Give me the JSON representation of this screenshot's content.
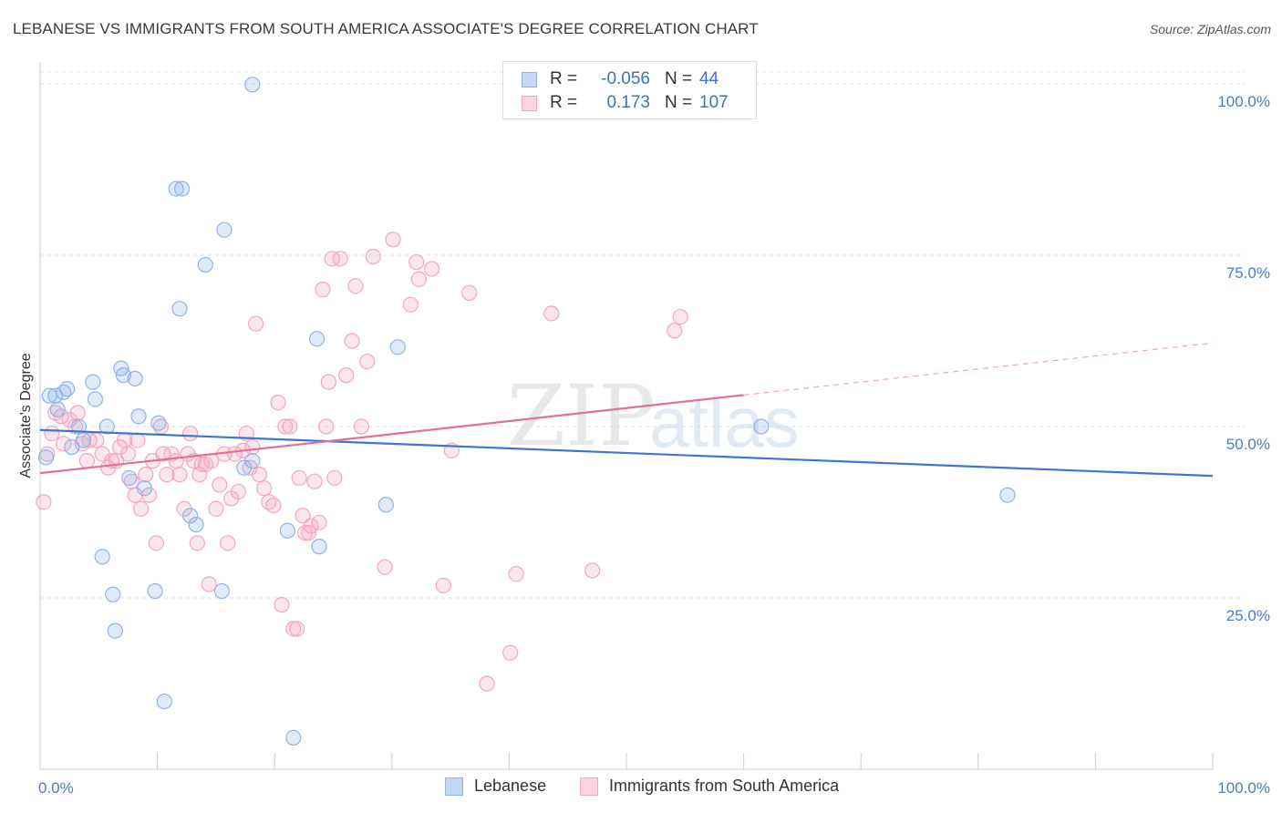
{
  "title": "LEBANESE VS IMMIGRANTS FROM SOUTH AMERICA ASSOCIATE'S DEGREE CORRELATION CHART",
  "source": "Source: ZipAtlas.com",
  "watermark": {
    "zip": "ZIP",
    "atlas": "atlas"
  },
  "legend": {
    "rows": [
      {
        "r_label": "R =",
        "r_value": "-0.056",
        "n_label": "N =",
        "n_value": "44",
        "color": "#8fb4e6"
      },
      {
        "r_label": "R =",
        "r_value": "0.173",
        "n_label": "N =",
        "n_value": "107",
        "color": "#f4a5c0"
      }
    ]
  },
  "chart_data": {
    "type": "scatter",
    "title": "LEBANESE VS IMMIGRANTS FROM SOUTH AMERICA ASSOCIATE'S DEGREE CORRELATION CHART",
    "xlabel": "",
    "ylabel": "Associate's Degree",
    "xlim": [
      0,
      100
    ],
    "ylim": [
      0,
      102
    ],
    "x_tick_labels": [
      "0.0%",
      "100.0%"
    ],
    "y_ticks": [
      25,
      50,
      75,
      100
    ],
    "y_tick_labels": [
      "25.0%",
      "50.0%",
      "75.0%",
      "100.0%"
    ],
    "grid": true,
    "legend_position": "bottom",
    "series": [
      {
        "name": "Lebanese",
        "color": "#8fb4e6",
        "line_color": "#3a78d0",
        "trend": {
          "x0": 0,
          "y0": 49.5,
          "x1": 100,
          "y1": 42.8
        },
        "points": [
          [
            0.5,
            45.5
          ],
          [
            0.8,
            54.5
          ],
          [
            1.3,
            54.5
          ],
          [
            1.5,
            52.5
          ],
          [
            2.0,
            55
          ],
          [
            2.3,
            55.5
          ],
          [
            2.7,
            47
          ],
          [
            3.3,
            50
          ],
          [
            3.7,
            48
          ],
          [
            4.5,
            56.5
          ],
          [
            4.7,
            54
          ],
          [
            5.3,
            31
          ],
          [
            5.7,
            50
          ],
          [
            6.2,
            25.5
          ],
          [
            6.4,
            20.2
          ],
          [
            6.9,
            58.5
          ],
          [
            7.1,
            57.5
          ],
          [
            7.6,
            42.5
          ],
          [
            8.1,
            57
          ],
          [
            8.4,
            51.5
          ],
          [
            8.9,
            41
          ],
          [
            9.8,
            26
          ],
          [
            10.1,
            50.5
          ],
          [
            10.6,
            9.9
          ],
          [
            11.6,
            84.7
          ],
          [
            12.1,
            84.7
          ],
          [
            11.9,
            67.2
          ],
          [
            12.8,
            37
          ],
          [
            13.3,
            35.7
          ],
          [
            14.1,
            73.6
          ],
          [
            15.5,
            26
          ],
          [
            15.7,
            78.7
          ],
          [
            17.4,
            44
          ],
          [
            18.1,
            45
          ],
          [
            18.1,
            99.9
          ],
          [
            21.1,
            34.8
          ],
          [
            21.6,
            4.6
          ],
          [
            23.6,
            62.8
          ],
          [
            23.8,
            32.5
          ],
          [
            29.5,
            38.6
          ],
          [
            30.5,
            61.6
          ],
          [
            61.5,
            50
          ],
          [
            82.5,
            40
          ]
        ]
      },
      {
        "name": "Immigrants from South America",
        "color": "#f4a5c0",
        "line_color": "#e07098",
        "trend": {
          "x0": 0,
          "y0": 43.2,
          "x1": 60,
          "y1": 54.6
        },
        "trend_dashed": {
          "x0": 60,
          "y0": 54.6,
          "x1": 100,
          "y1": 62.2
        },
        "points": [
          [
            0.3,
            39
          ],
          [
            0.6,
            46
          ],
          [
            1.0,
            49
          ],
          [
            1.3,
            52
          ],
          [
            1.8,
            51.5
          ],
          [
            2.0,
            47.5
          ],
          [
            2.5,
            51
          ],
          [
            3.0,
            50
          ],
          [
            3.2,
            52
          ],
          [
            3.6,
            47.5
          ],
          [
            4.0,
            45
          ],
          [
            4.2,
            48
          ],
          [
            4.8,
            48
          ],
          [
            5.3,
            46
          ],
          [
            5.8,
            44
          ],
          [
            6.1,
            45
          ],
          [
            6.5,
            45
          ],
          [
            6.8,
            47
          ],
          [
            7.2,
            48
          ],
          [
            7.5,
            46
          ],
          [
            7.8,
            42
          ],
          [
            8.1,
            40
          ],
          [
            8.3,
            48
          ],
          [
            8.6,
            38
          ],
          [
            9.0,
            43
          ],
          [
            9.3,
            40
          ],
          [
            9.6,
            45
          ],
          [
            9.9,
            33
          ],
          [
            10.3,
            50
          ],
          [
            10.5,
            46
          ],
          [
            10.8,
            43
          ],
          [
            11.2,
            46
          ],
          [
            11.6,
            45
          ],
          [
            11.9,
            43
          ],
          [
            12.3,
            38
          ],
          [
            12.6,
            46
          ],
          [
            12.8,
            49
          ],
          [
            13.1,
            45
          ],
          [
            13.4,
            33
          ],
          [
            13.6,
            43
          ],
          [
            13.8,
            44.5
          ],
          [
            14.1,
            44.5
          ],
          [
            14.4,
            27
          ],
          [
            14.6,
            45
          ],
          [
            15.0,
            38
          ],
          [
            15.3,
            41.5
          ],
          [
            15.7,
            46
          ],
          [
            16.0,
            33
          ],
          [
            16.3,
            39.5
          ],
          [
            16.6,
            46
          ],
          [
            16.9,
            40.5
          ],
          [
            17.3,
            46.5
          ],
          [
            17.6,
            49
          ],
          [
            17.9,
            44
          ],
          [
            18.1,
            47
          ],
          [
            18.4,
            65
          ],
          [
            18.7,
            43
          ],
          [
            19.1,
            41
          ],
          [
            19.5,
            39
          ],
          [
            19.9,
            38.5
          ],
          [
            20.3,
            53.5
          ],
          [
            20.6,
            24
          ],
          [
            20.9,
            50
          ],
          [
            21.3,
            50
          ],
          [
            21.6,
            20.5
          ],
          [
            21.9,
            20.5
          ],
          [
            22.1,
            42.5
          ],
          [
            22.4,
            37
          ],
          [
            22.6,
            34.5
          ],
          [
            22.9,
            34.5
          ],
          [
            23.1,
            35.5
          ],
          [
            23.4,
            42
          ],
          [
            23.8,
            36
          ],
          [
            24.1,
            70
          ],
          [
            24.4,
            50
          ],
          [
            24.6,
            56.5
          ],
          [
            24.9,
            74.5
          ],
          [
            25.1,
            42.5
          ],
          [
            25.6,
            74.5
          ],
          [
            26.1,
            57.5
          ],
          [
            26.6,
            62.5
          ],
          [
            26.9,
            70.5
          ],
          [
            27.4,
            50
          ],
          [
            27.9,
            59.5
          ],
          [
            28.4,
            74.8
          ],
          [
            29.4,
            29.5
          ],
          [
            30.1,
            77.3
          ],
          [
            31.6,
            67.8
          ],
          [
            32.1,
            74
          ],
          [
            32.3,
            71.5
          ],
          [
            33.4,
            73
          ],
          [
            34.4,
            26.8
          ],
          [
            35.1,
            46.5
          ],
          [
            36.6,
            69.5
          ],
          [
            38.1,
            12.5
          ],
          [
            40.1,
            17
          ],
          [
            40.6,
            28.5
          ],
          [
            43.6,
            66.5
          ],
          [
            47.1,
            29
          ],
          [
            54.1,
            64
          ],
          [
            54.6,
            66
          ]
        ]
      }
    ]
  }
}
